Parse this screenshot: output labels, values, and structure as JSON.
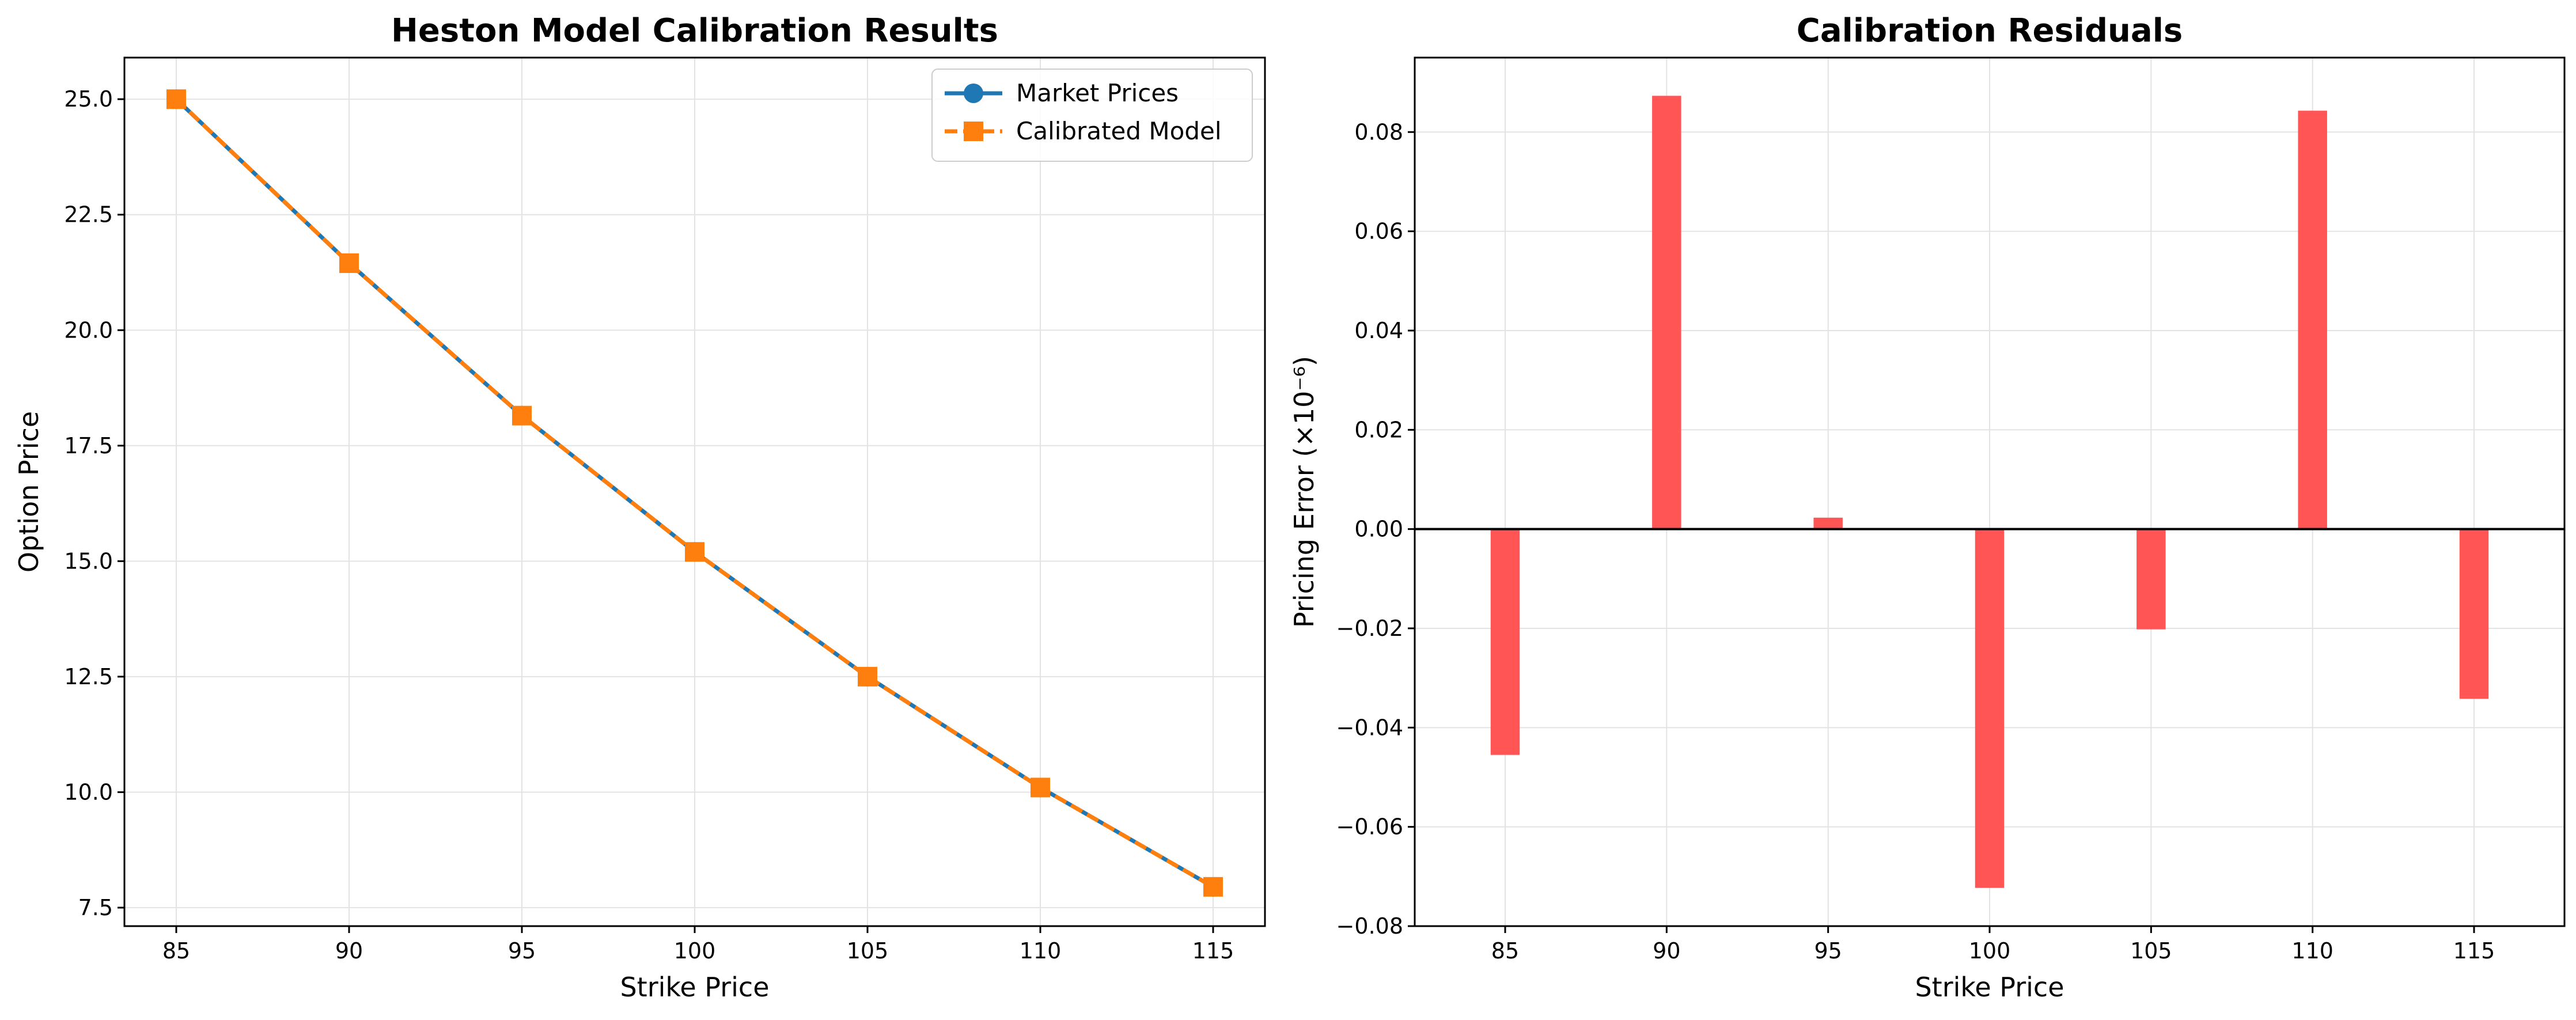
{
  "chart_data": [
    {
      "type": "line",
      "title": "Heston Model Calibration Results",
      "xlabel": "Strike Price",
      "ylabel": "Option Price",
      "x": [
        85,
        90,
        95,
        100,
        105,
        110,
        115
      ],
      "xlim": [
        83.5,
        116.5
      ],
      "ylim": [
        7.1,
        25.9
      ],
      "yticks": [
        "7.5",
        "10.0",
        "12.5",
        "15.0",
        "17.5",
        "20.0",
        "22.5",
        "25.0"
      ],
      "xticks": [
        "85",
        "90",
        "95",
        "100",
        "105",
        "110",
        "115"
      ],
      "grid": true,
      "legend_position": "top-right",
      "series": [
        {
          "name": "Market Prices",
          "color": "#1f77b4",
          "marker": "circle",
          "linestyle": "solid",
          "values": [
            25.0,
            21.45,
            18.15,
            15.2,
            12.5,
            10.1,
            7.95
          ]
        },
        {
          "name": "Calibrated Model",
          "color": "#ff7f0e",
          "marker": "square",
          "linestyle": "dashed",
          "values": [
            25.0,
            21.45,
            18.15,
            15.2,
            12.5,
            10.1,
            7.95
          ]
        }
      ]
    },
    {
      "type": "bar",
      "title": "Calibration Residuals",
      "xlabel": "Strike Price",
      "ylabel": "Pricing Error (×10⁻⁶)",
      "categories": [
        "85",
        "90",
        "95",
        "100",
        "105",
        "110",
        "115"
      ],
      "x": [
        85,
        90,
        95,
        100,
        105,
        110,
        115
      ],
      "values": [
        -0.0455,
        0.0873,
        0.0023,
        -0.0723,
        -0.0202,
        0.0843,
        -0.0342
      ],
      "xlim": [
        82.2,
        117.8
      ],
      "ylim": [
        -0.08,
        0.095
      ],
      "yticks": [
        "−0.08",
        "−0.06",
        "−0.04",
        "−0.02",
        "0.00",
        "0.02",
        "0.04",
        "0.06",
        "0.08"
      ],
      "xticks": [
        "85",
        "90",
        "95",
        "100",
        "105",
        "110",
        "115"
      ],
      "bar_color": "#ff5252",
      "grid": true
    }
  ]
}
